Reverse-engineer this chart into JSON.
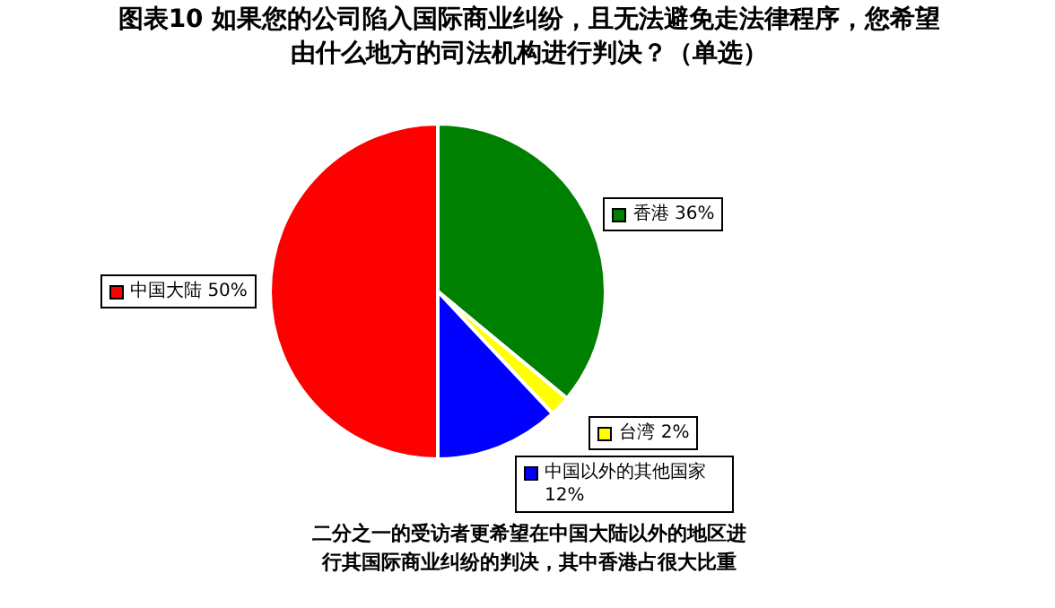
{
  "chart_data": {
    "type": "pie",
    "title": "图表10  如果您的公司陷入国际商业纠纷，且无法避免走法律程序，您希望由什么地方的司法机构进行判决？（单选）",
    "categories": [
      "香港",
      "台湾",
      "中国以外的其他国家",
      "中国大陆"
    ],
    "values": [
      36,
      2,
      12,
      50
    ],
    "colors": [
      "#008000",
      "#ffff00",
      "#0000ff",
      "#ff0000"
    ],
    "value_labels": [
      "36%",
      "2%",
      "12%",
      "50%"
    ],
    "legend": "bottom left",
    "annotations": [
      "二分之一的受访者更希望在中国大陆以外的地区进行其国际商业纠纷的判决，其中香港占很大比重"
    ]
  }
}
